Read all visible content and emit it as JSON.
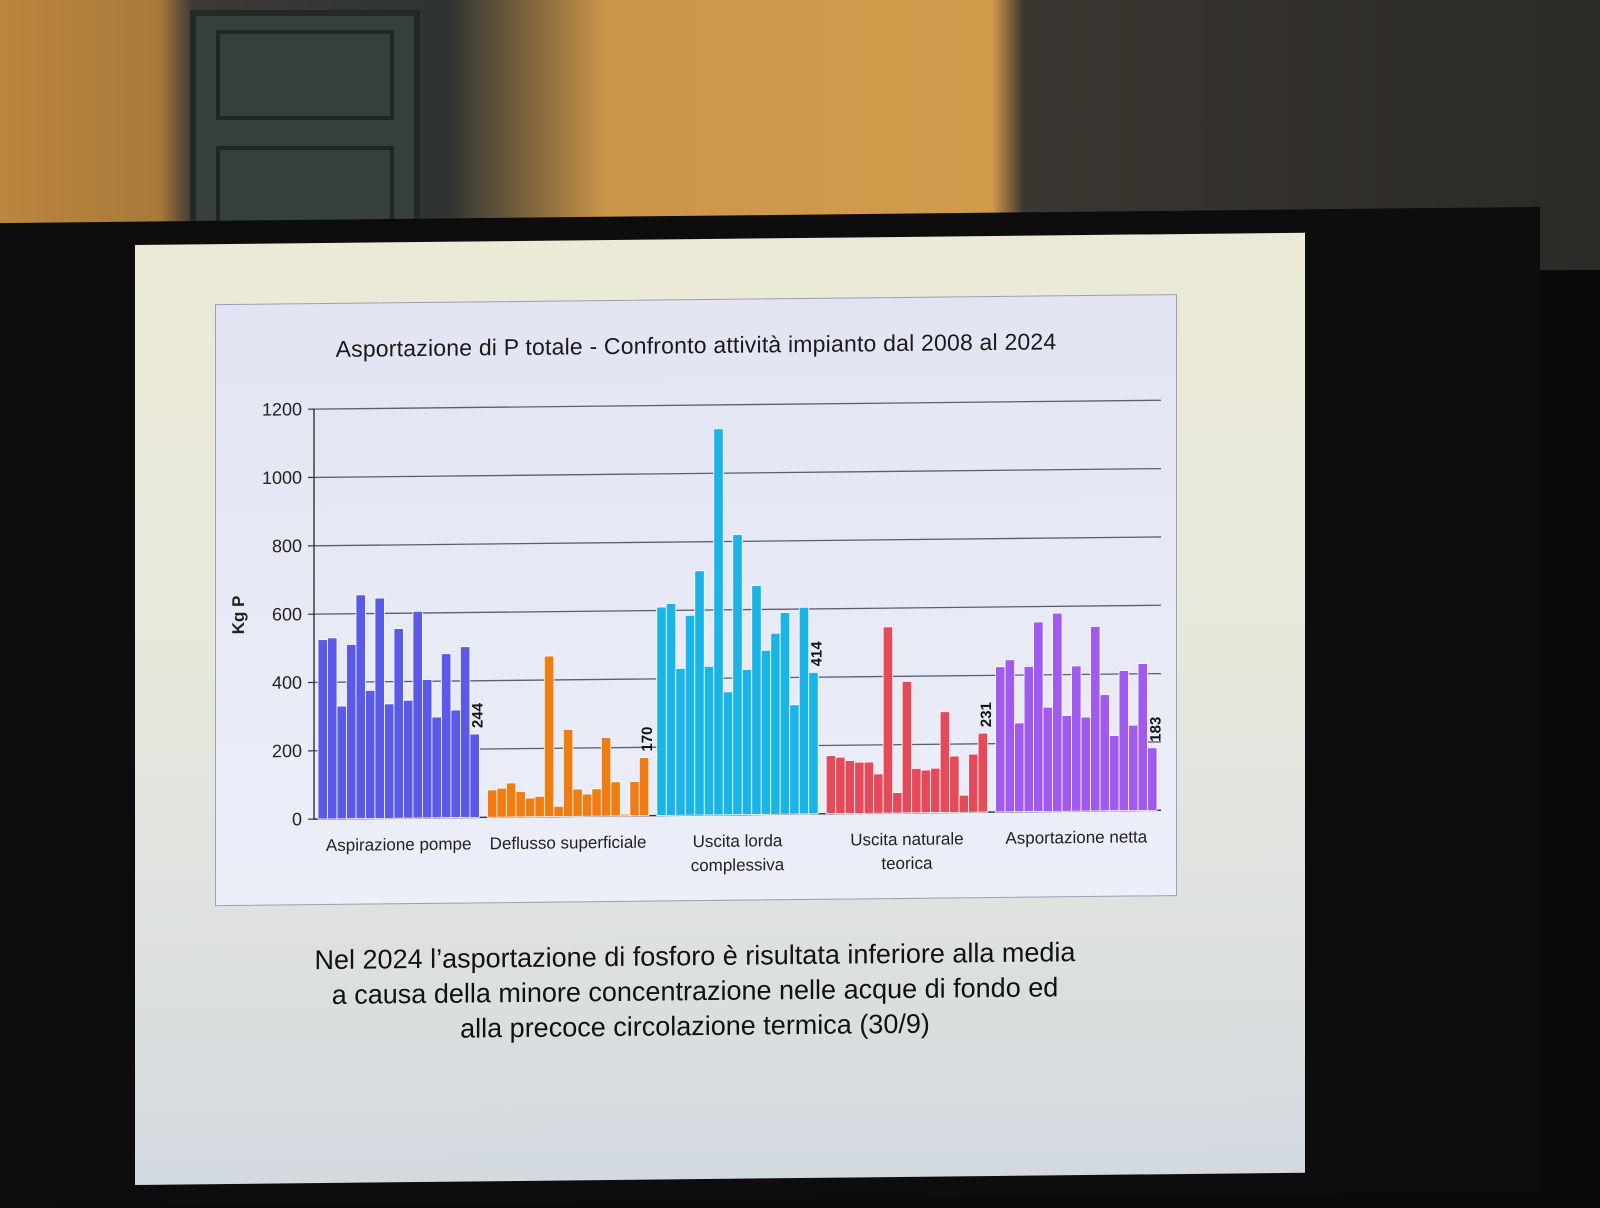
{
  "slide": {
    "caption_lines": [
      "Nel 2024 l’asportazione di fosforo è risultata inferiore alla media",
      "a causa della minore concentrazione nelle acque di fondo ed",
      "alla precoce circolazione termica (30/9)"
    ]
  },
  "chart_data": {
    "type": "bar",
    "title": "Asportazione di P totale - Confronto attività impianto dal 2008 al 2024",
    "ylabel": "Kg P",
    "xlabel": "",
    "ylim": [
      0,
      1200
    ],
    "yticks": [
      0,
      200,
      400,
      600,
      800,
      1000,
      1200
    ],
    "grid": true,
    "groups": [
      {
        "label": "Aspirazione pompe",
        "label_lines": [
          "Aspirazione pompe"
        ],
        "color": "#5a5ae6",
        "values": [
          525,
          530,
          330,
          510,
          655,
          375,
          645,
          335,
          555,
          345,
          605,
          405,
          295,
          480,
          315,
          500,
          244
        ],
        "last_label": "244"
      },
      {
        "label": "Deflusso superficiale",
        "label_lines": [
          "Deflusso superficiale"
        ],
        "color": "#f07d14",
        "values": [
          80,
          85,
          100,
          75,
          55,
          60,
          470,
          30,
          255,
          80,
          65,
          80,
          230,
          100,
          5,
          100,
          170
        ],
        "last_label": "170"
      },
      {
        "label": "Uscita lorda complessiva",
        "label_lines": [
          "Uscita lorda",
          "complessiva"
        ],
        "color": "#1ab4e6",
        "values": [
          610,
          620,
          430,
          585,
          715,
          435,
          1130,
          360,
          820,
          425,
          670,
          480,
          530,
          590,
          320,
          605,
          414
        ],
        "last_label": "414"
      },
      {
        "label": "Uscita naturale teorica",
        "label_lines": [
          "Uscita naturale",
          "teorica"
        ],
        "color": "#e54a5a",
        "values": [
          170,
          165,
          155,
          150,
          150,
          115,
          545,
          60,
          385,
          130,
          125,
          130,
          295,
          165,
          50,
          170,
          231
        ],
        "last_label": "231"
      },
      {
        "label": "Asportazione netta",
        "label_lines": [
          "Asportazione netta"
        ],
        "color": "#a05af0",
        "values": [
          425,
          445,
          260,
          425,
          555,
          305,
          580,
          280,
          425,
          275,
          540,
          340,
          220,
          410,
          250,
          430,
          183
        ],
        "last_label": "183"
      }
    ]
  }
}
